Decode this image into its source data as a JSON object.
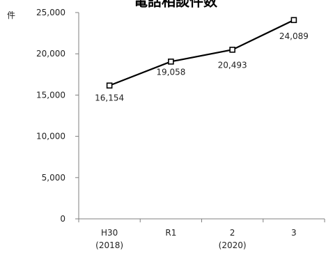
{
  "chart_data": {
    "type": "line",
    "title": "電話相談件数",
    "ylabel": "件",
    "xlabel": "",
    "categories": [
      {
        "line1": "H30",
        "line2": "(2018)"
      },
      {
        "line1": "R1",
        "line2": ""
      },
      {
        "line1": "2",
        "line2": "(2020)"
      },
      {
        "line1": "3",
        "line2": ""
      }
    ],
    "values": [
      16154,
      19058,
      20493,
      24089
    ],
    "value_labels": [
      "16,154",
      "19,058",
      "20,493",
      "24,089"
    ],
    "ylim": [
      0,
      25000
    ],
    "yticks": [
      0,
      5000,
      10000,
      15000,
      20000,
      25000
    ],
    "ytick_labels": [
      "0",
      "5,000",
      "10,000",
      "15,000",
      "20,000",
      "25,000"
    ],
    "grid": false,
    "line_color": "#000000",
    "marker": "hollow-square"
  }
}
